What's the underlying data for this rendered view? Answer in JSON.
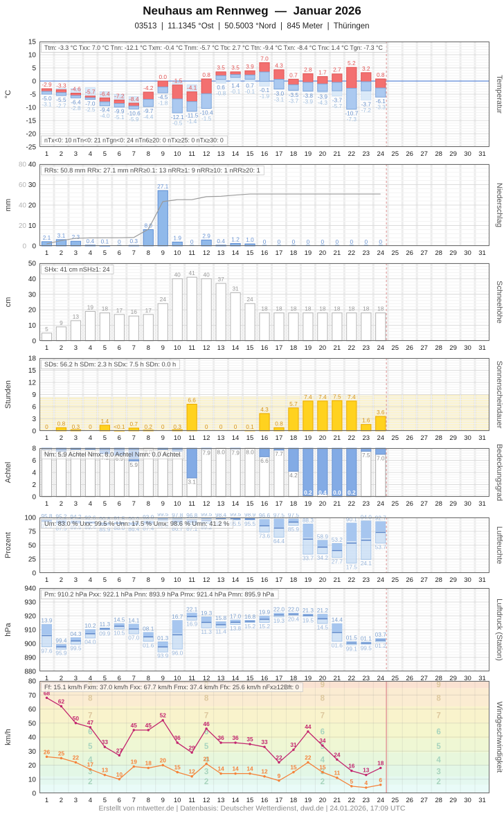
{
  "page": {
    "title": "Neuhaus am Rennweg  —  Januar 2026",
    "subtitle": "03513  |  11.1345 °Ost  |  50.5003 °Nord  |  845 Meter  |  Thüringen",
    "footer": "Erstellt von mtwetter.de | Datenbasis: Deutscher Wetterdienst, dwd.de | 24.01.2026, 17:09 UTC",
    "days_in_month": 31,
    "days_with_data": 24,
    "now_marker_day": 23.9
  },
  "chart_data": [
    {
      "id": "temperature",
      "kind": "temp",
      "type": "bar",
      "name_right": "Temperatur",
      "unit_left": "°C",
      "stats": [
        "Ttm: -3.3 °C",
        "Txx: 7.0 °C",
        "Tnn: -12.1 °C",
        "Txm: -0.4 °C",
        "Tnm: -5.7 °C",
        "Ttx: 2.7 °C",
        "Ttn: -9.4 °C",
        "Txn: -8.4 °C",
        "Tnx: 1.4 °C",
        "Tgn: -7.3 °C"
      ],
      "stats_bottom": [
        "nTx<0: 10",
        "nTn<0: 21",
        "nTgn<0: 24",
        "nTn6≥20: 0",
        "nTx≥25: 0",
        "nTx≥30: 0"
      ],
      "ylim": [
        -25,
        15
      ],
      "yticks": [
        15,
        10,
        5,
        0,
        -5,
        -10,
        -15,
        -20,
        -25
      ],
      "tmax": [
        -2.9,
        -3.3,
        -4.6,
        -5.7,
        -6.4,
        -7.2,
        -8.4,
        -4.2,
        0.0,
        -1.5,
        -4.1,
        0.8,
        3.5,
        3.5,
        3.9,
        7.0,
        4.3,
        0.7,
        2.8,
        1.7,
        2.7,
        5.2,
        3.2,
        0.8
      ],
      "tmin": [
        -5.0,
        -5.5,
        -6.4,
        -7.0,
        -9.4,
        -9.9,
        -10.6,
        -9.7,
        -4.5,
        -12.1,
        -11.5,
        -10.4,
        0.6,
        1.4,
        0.7,
        -0.1,
        -3.0,
        -3.5,
        -3.8,
        -3.9,
        -3.7,
        -10.7,
        -3.7,
        -6.1
      ],
      "tgnd": [
        -3.1,
        -2.7,
        -2.8,
        -2.5,
        -4.0,
        -5.1,
        -5.9,
        -4.4,
        -1.8,
        -0.5,
        -1.4,
        -1.5,
        -0.8,
        -0.1,
        -0.1,
        -1.9,
        -3.1,
        -3.7,
        -3.9,
        -4.3,
        -5.7,
        -7.3,
        -7.2,
        -3.3
      ]
    },
    {
      "id": "precipitation",
      "kind": "precip",
      "type": "bar",
      "name_right": "Niederschlag",
      "unit_left": "mm",
      "stats": [
        "RRs: 50.8 mm",
        "RRx: 27.1 mm",
        "nRR≥0.1: 13",
        "nRR≥1: 9",
        "nRR≥10: 1",
        "nRR≥20: 1"
      ],
      "ylim": [
        0,
        40
      ],
      "yticks": [
        40,
        30,
        20,
        10,
        0
      ],
      "ylim2": [
        0,
        80
      ],
      "yticks2": [
        80,
        60,
        40,
        20,
        0
      ],
      "values": [
        2.1,
        3.1,
        2.3,
        0.4,
        0.1,
        0,
        0.3,
        8.0,
        27.1,
        1.9,
        0,
        2.9,
        0.4,
        1.2,
        1.0,
        0,
        0,
        0,
        0,
        0,
        0,
        0,
        0,
        0
      ],
      "cumulative": [
        2.1,
        5.2,
        7.5,
        7.9,
        8.0,
        8.0,
        8.3,
        16.3,
        43.4,
        45.3,
        45.3,
        48.2,
        48.6,
        49.8,
        50.8,
        50.8,
        50.8,
        50.8,
        50.8,
        50.8,
        50.8,
        50.8,
        50.8,
        50.8
      ]
    },
    {
      "id": "snow-depth",
      "kind": "snow",
      "type": "bar",
      "name_right": "Schneehöhe",
      "unit_left": "cm",
      "stats": [
        "SHx: 41 cm",
        "nSH≥1: 24"
      ],
      "ylim": [
        0,
        50
      ],
      "yticks": [
        50,
        40,
        30,
        20,
        10,
        0
      ],
      "values": [
        5,
        9,
        13,
        19,
        18,
        17,
        16,
        17,
        24,
        40,
        41,
        40,
        37,
        31,
        24,
        18,
        18,
        18,
        18,
        18,
        18,
        18,
        18,
        18
      ]
    },
    {
      "id": "sunshine",
      "kind": "sun",
      "type": "bar",
      "name_right": "Sonnenscheindauer",
      "unit_left": "Stunden",
      "stats": [
        "SDs: 56.2 h",
        "SDm: 2.3 h",
        "SDx: 7.5 h",
        "SDn: 0.0 h"
      ],
      "ylim": [
        0,
        18
      ],
      "yticks": [
        18,
        15,
        12,
        9,
        6,
        3,
        0
      ],
      "values": [
        0,
        0.8,
        0.3,
        0,
        1.4,
        0.05,
        0.7,
        0.2,
        0,
        0.3,
        6.6,
        0,
        0,
        0,
        0.1,
        4.3,
        0.8,
        5.7,
        7.4,
        7.4,
        7.5,
        7.4,
        1.6,
        3.6
      ],
      "labels": [
        "0",
        "0.8",
        "0.3",
        "0",
        "1.4",
        "<0.1",
        "0.7",
        "0.2",
        "0",
        "0.3",
        "6.6",
        "0",
        "0",
        "0",
        "0.1",
        "4.3",
        "0.8",
        "5.7",
        "7.4",
        "7.4",
        "7.5",
        "7.4",
        "1.6",
        "3.6"
      ],
      "possible_sunshine_est": [
        8.2,
        8.2,
        8.2,
        8.3,
        8.3,
        8.3,
        8.3,
        8.4,
        8.4,
        8.4,
        8.4,
        8.5,
        8.5,
        8.5,
        8.5,
        8.5,
        8.6,
        8.6,
        8.6,
        8.6,
        8.7,
        8.7,
        8.7,
        8.8,
        8.8,
        8.8,
        8.8,
        8.9,
        8.9,
        9.0,
        9.0
      ]
    },
    {
      "id": "cloud-cover",
      "kind": "cloud",
      "type": "bar",
      "name_right": "Bedeckungsgrad",
      "unit_left": "Achtel",
      "stats": [
        "Nm: 5.9 Achtel",
        "Nmx: 8.0 Achtel",
        "Nmn: 0.0 Achtel"
      ],
      "ylim": [
        0,
        8
      ],
      "yticks": [
        8,
        6,
        4,
        2,
        0
      ],
      "values": [
        7.9,
        7.5,
        7.8,
        7.8,
        7.1,
        6.9,
        5.9,
        8.0,
        7.8,
        7.5,
        3.1,
        7.9,
        8.0,
        7.9,
        8.0,
        6.6,
        7.7,
        4.2,
        0.2,
        0.4,
        0.0,
        0.2,
        7.5,
        7.0
      ]
    },
    {
      "id": "humidity",
      "kind": "range",
      "type": "bar",
      "name_right": "Luftfeuchte",
      "unit_left": "Prozent",
      "stats": [
        "Um: 83.0 %",
        "Uxx: 99.5 %",
        "Unn: 17.5 %",
        "Umx: 98.6 %",
        "Umn: 41.2 %"
      ],
      "ylim": [
        0,
        100
      ],
      "yticks": [
        100,
        75,
        50,
        25,
        0
      ],
      "vmax": [
        95.8,
        95.2,
        94.2,
        92.6,
        90.8,
        91.5,
        90.9,
        93.9,
        99.5,
        97.8,
        96.8,
        99.5,
        98.4,
        99.5,
        98.9,
        96.6,
        97.5,
        97.5,
        88.3,
        58.9,
        53.2,
        90.1,
        94.0,
        92.7
      ],
      "vmin": [
        91.9,
        87.5,
        89.5,
        89.4,
        85.9,
        88.0,
        86.4,
        87.4,
        92.8,
        86.7,
        87.1,
        89.2,
        96.1,
        95.5,
        95.5,
        73.6,
        64.4,
        85.9,
        33.7,
        34.2,
        27.7,
        17.5,
        24.1,
        53.7
      ],
      "labels_max": [
        "95.8",
        "95.2",
        "94.2",
        "92.6",
        "90.8",
        "91.5",
        "90.9",
        "93.9",
        "99.5",
        "97.8",
        "96.8",
        "99.5",
        "98.4",
        "99.5",
        "98.9",
        "96.6",
        "97.5",
        "97.5",
        "88.3",
        "58.9",
        "53.2",
        "90.1",
        "94.0",
        "92.7"
      ],
      "labels_min": [
        "91.9",
        "87.5",
        "89.5",
        "89.4",
        "85.9",
        "88.0",
        "86.4",
        "87.4",
        "92.8",
        "86.7",
        "87.1",
        "89.2",
        "96.1",
        "95.5",
        "95.5",
        "73.6",
        "64.4",
        "85.9",
        "33.7",
        "34.2",
        "27.7",
        "17.5",
        "24.1",
        "53.7"
      ]
    },
    {
      "id": "pressure",
      "kind": "range",
      "type": "bar",
      "name_right": "Luftdruck (Station)",
      "unit_left": "hPa",
      "stats": [
        "Pm: 910.2 hPa",
        "Pxx: 922.1 hPa",
        "Pnn: 893.9 hPa",
        "Pmx: 921.4 hPa",
        "Pmn: 895.9 hPa"
      ],
      "ylim": [
        880,
        940
      ],
      "yticks": [
        940,
        930,
        920,
        910,
        900,
        890,
        880
      ],
      "vmax": [
        913.9,
        899.4,
        904.3,
        910.2,
        911.3,
        914.5,
        914.1,
        908.1,
        901.3,
        916.7,
        922.1,
        919.3,
        915.8,
        917.0,
        916.8,
        919.9,
        922.0,
        922.0,
        921.3,
        921.2,
        914.4,
        901.5,
        901.1,
        903.7
      ],
      "vmin": [
        897.6,
        895.9,
        899.5,
        904.0,
        909.9,
        910.5,
        907.0,
        901.6,
        893.9,
        896.0,
        916.9,
        911.3,
        911.4,
        913.8,
        915.2,
        915.2,
        919.3,
        920.4,
        919.5,
        914.5,
        901.6,
        899.1,
        899.5,
        901.2
      ],
      "labels_max": [
        "13.9",
        "99.4",
        "04.3",
        "10.2",
        "11.3",
        "14.5",
        "14.1",
        "08.1",
        "01.3",
        "16.7",
        "22.1",
        "19.3",
        "15.8",
        "17.0",
        "16.8",
        "19.9",
        "22.0",
        "22.0",
        "21.3",
        "21.2",
        "14.4",
        "01.5",
        "01.1",
        "03.7"
      ],
      "labels_min": [
        "97.6",
        "95.9",
        "99.5",
        "04.0",
        "09.9",
        "10.5",
        "07.0",
        "01.6",
        "93.9",
        "96.0",
        "16.9",
        "11.3",
        "11.4",
        "13.8",
        "15.2",
        "15.2",
        "19.3",
        "20.4",
        "19.5",
        "14.5",
        "01.6",
        "99.1",
        "99.5",
        "01.2"
      ]
    },
    {
      "id": "wind-speed",
      "kind": "wind",
      "type": "line",
      "name_right": "Windgeschwindigkeit",
      "unit_left": "km/h",
      "stats": [
        "Ff: 15.1 km/h",
        "Fxm: 37.0 km/h",
        "Fxx: 67.7 km/h",
        "Fmx: 37.4 km/h",
        "Ffx: 25.6 km/h",
        "nFx≥12Bft: 0"
      ],
      "ylim": [
        0,
        80
      ],
      "yticks": [
        80,
        70,
        60,
        50,
        40,
        30,
        20,
        10,
        0
      ],
      "series": [
        {
          "name": "gust-max",
          "color": "#c2256e",
          "values": [
            68,
            62,
            50,
            47,
            33,
            27,
            45,
            45,
            52,
            36,
            29,
            46,
            36,
            36,
            35,
            33,
            22,
            31,
            44,
            34,
            24,
            16,
            13,
            18
          ]
        },
        {
          "name": "mean-wind",
          "color": "#f5823a",
          "values": [
            26,
            25,
            22,
            17,
            13,
            10,
            19,
            18,
            20,
            15,
            12,
            21,
            14,
            14,
            14,
            12,
            9,
            15,
            22,
            15,
            11,
            5,
            4,
            6
          ]
        }
      ],
      "beaufort_bands": [
        {
          "to": 6,
          "color": "#e9fbf8"
        },
        {
          "to": 12,
          "color": "#e4f8f0"
        },
        {
          "to": 20,
          "color": "#e3f7e6"
        },
        {
          "to": 29,
          "color": "#e8f7dc"
        },
        {
          "to": 39,
          "color": "#eff7d4"
        },
        {
          "to": 50,
          "color": "#f5f6cd"
        },
        {
          "to": 62,
          "color": "#f9f3cc"
        },
        {
          "to": 75,
          "color": "#fbecd2"
        },
        {
          "to": 80,
          "color": "#fae2d2"
        }
      ],
      "beaufort_labels": [
        {
          "n": "2",
          "y": 8.5
        },
        {
          "n": "3",
          "y": 15.5
        },
        {
          "n": "4",
          "y": 24
        },
        {
          "n": "5",
          "y": 33.5
        },
        {
          "n": "6",
          "y": 44
        },
        {
          "n": "7",
          "y": 55.5
        },
        {
          "n": "8",
          "y": 68
        },
        {
          "n": "9",
          "y": 77.5
        }
      ],
      "beaufort_label_day_positions": [
        3.5,
        11.5,
        19.5,
        27.5
      ]
    }
  ]
}
